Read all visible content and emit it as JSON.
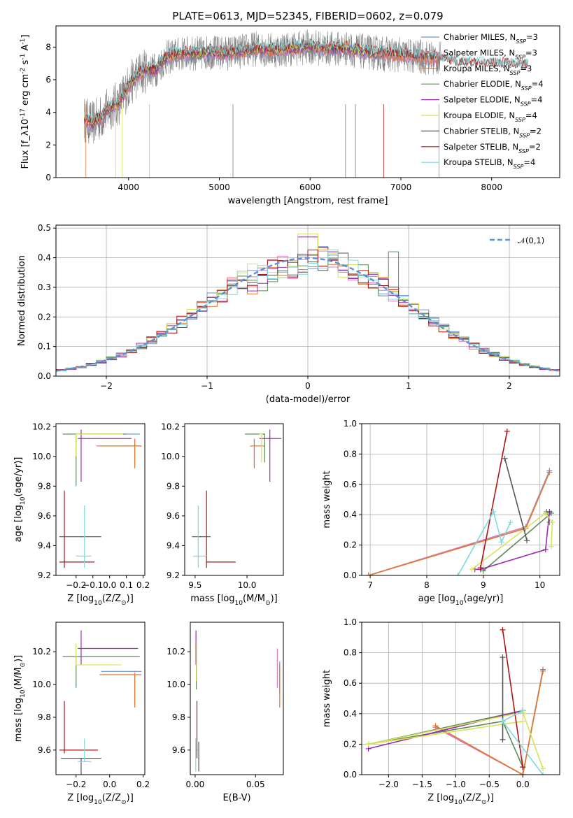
{
  "colors": {
    "Chabrier MILES": "#6f93cf",
    "Salpeter MILES": "#e377c2",
    "Kroupa MILES": "#e07a2a",
    "Chabrier ELODIE": "#5a8a5a",
    "Salpeter ELODIE": "#9b2bb0",
    "Kroupa ELODIE": "#d8e25a",
    "Chabrier STELIB": "#555555",
    "Salpeter STELIB": "#b01515",
    "Kroupa STELIB": "#7fd9dc",
    "data": "#808080",
    "gauss": "#5b8fd6"
  },
  "chart_data": [
    {
      "id": "spectrum",
      "type": "line",
      "title": "PLATE=0613, MJD=52345, FIBERID=0602, z=0.079",
      "xlabel": "wavelength [Angstrom, rest frame]",
      "ylabel": "Flux [f$_\\lambda$10$^{-17}$ erg cm$^{-2}$ s$^{-1}$ A$^{-1}$]",
      "xlim": [
        3200,
        8750
      ],
      "ylim": [
        0,
        9.3
      ],
      "xticks": [
        4000,
        5000,
        6000,
        7000,
        8000
      ],
      "yticks": [
        0,
        2,
        4,
        6,
        8
      ],
      "grid": false,
      "legend_placement": "upper right",
      "legend": [
        "Chabrier MILES, N$_{SSP}$=3",
        "Salpeter MILES, N$_{SSP}$=3",
        "Kroupa MILES, N$_{SSP}$=3",
        "Chabrier ELODIE, N$_{SSP}$=4",
        "Salpeter ELODIE, N$_{SSP}$=4",
        "Kroupa ELODIE, N$_{SSP}$=4",
        "Chabrier STELIB, N$_{SSP}$=2",
        "Salpeter STELIB, N$_{SSP}$=2",
        "Kroupa STELIB, N$_{SSP}$=4"
      ],
      "model_wave": [
        3500,
        3600,
        3700,
        3800,
        3900,
        4000,
        4100,
        4200,
        4300,
        4400,
        4500,
        4600,
        4700,
        4800,
        4900,
        5000,
        5200,
        5400,
        5600,
        5800,
        6000,
        6200,
        6400,
        6600,
        6800,
        7000,
        7200,
        7400,
        7600,
        7800,
        8000,
        8200,
        8400
      ],
      "model_flux": [
        3.6,
        3.3,
        3.7,
        4.3,
        4.6,
        5.6,
        6.3,
        6.6,
        6.6,
        7.3,
        7.5,
        7.6,
        7.6,
        7.6,
        7.7,
        7.6,
        7.7,
        7.9,
        7.8,
        7.9,
        8.0,
        7.9,
        7.9,
        7.7,
        7.6,
        7.5,
        7.4,
        7.3,
        7.0,
        6.9,
        6.9,
        6.9,
        6.8
      ]
    },
    {
      "id": "residuals",
      "type": "bar",
      "xlabel": "(data-model)/error",
      "ylabel": "Normed distribution",
      "xlim": [
        -2.5,
        2.5
      ],
      "ylim": [
        0,
        0.51
      ],
      "xticks": [
        -2,
        -1,
        0,
        1,
        2
      ],
      "yticks": [
        0.0,
        0.1,
        0.2,
        0.3,
        0.4,
        0.5
      ],
      "grid": true,
      "legend_placement": "upper right",
      "legend": [
        "$\\mathcal{N}(0,1)$"
      ],
      "bin_width": 0.1
    },
    {
      "id": "age-Z",
      "type": "scatter",
      "xlabel": "Z [log$_{10}$($Z/Z_\\odot$)]",
      "ylabel": "age  [log$_{10}$($age/yr$)]",
      "xlim": [
        -0.32,
        0.21
      ],
      "ylim": [
        9.2,
        10.22
      ],
      "xticks": [
        -0.2,
        -0.1,
        0.0,
        0.1,
        0.2
      ],
      "yticks": [
        9.2,
        9.4,
        9.6,
        9.8,
        10.0,
        10.2
      ],
      "grid": false,
      "points": [
        {
          "m": "Chabrier MILES",
          "x": -0.2,
          "y": 10.15,
          "xe": [
            0.0,
            0.38
          ],
          "ye": [
            0.0,
            0.0
          ]
        },
        {
          "m": "Salpeter MILES",
          "x": 0.15,
          "y": 10.07,
          "xe": [
            0.23,
            0.04
          ],
          "ye": [
            0.14,
            0.05
          ]
        },
        {
          "m": "Kroupa MILES",
          "x": 0.15,
          "y": 10.07,
          "xe": [
            0.21,
            0.04
          ],
          "ye": [
            0.15,
            0.04
          ]
        },
        {
          "m": "Chabrier ELODIE",
          "x": -0.2,
          "y": 10.15,
          "xe": [
            0.08,
            0.3
          ],
          "ye": [
            0.35,
            0.0
          ]
        },
        {
          "m": "Salpeter ELODIE",
          "x": -0.17,
          "y": 10.12,
          "xe": [
            0.02,
            0.3
          ],
          "ye": [
            0.29,
            0.06
          ]
        },
        {
          "m": "Kroupa ELODIE",
          "x": -0.2,
          "y": 10.15,
          "xe": [
            0.0,
            0.28
          ],
          "ye": [
            0.15,
            0.0
          ]
        },
        {
          "m": "Chabrier STELIB",
          "x": -0.17,
          "y": 9.46,
          "xe": [
            0.13,
            0.12
          ],
          "ye": [
            0.0,
            0.0
          ]
        },
        {
          "m": "Salpeter STELIB",
          "x": -0.27,
          "y": 9.29,
          "xe": [
            0.03,
            0.18
          ],
          "ye": [
            0.04,
            0.48
          ]
        },
        {
          "m": "Kroupa STELIB",
          "x": -0.15,
          "y": 9.33,
          "xe": [
            0.05,
            0.04
          ],
          "ye": [
            0.08,
            0.34
          ]
        }
      ]
    },
    {
      "id": "age-mass",
      "type": "scatter",
      "xlabel": "mass [log$_{10}$($M/M_\\odot$)]",
      "ylabel": "",
      "xlim": [
        9.4,
        10.35
      ],
      "ylim": [
        9.2,
        10.22
      ],
      "xticks": [
        9.5,
        10.0
      ],
      "yticks": [
        9.2,
        9.4,
        9.6,
        9.8,
        10.0,
        10.2
      ],
      "grid": false,
      "points": [
        {
          "m": "Chabrier MILES",
          "x": 10.08,
          "y": 10.15,
          "xe": [
            0.0,
            0.0
          ],
          "ye": [
            0.0,
            0.0
          ]
        },
        {
          "m": "Salpeter MILES",
          "x": 10.07,
          "y": 10.07,
          "xe": [
            0.0,
            0.0
          ],
          "ye": [
            0.14,
            0.05
          ]
        },
        {
          "m": "Kroupa MILES",
          "x": 10.07,
          "y": 10.07,
          "xe": [
            0.04,
            0.1
          ],
          "ye": [
            0.15,
            0.04
          ]
        },
        {
          "m": "Chabrier ELODIE",
          "x": 10.17,
          "y": 10.15,
          "xe": [
            0.19,
            0.0
          ],
          "ye": [
            0.19,
            0.0
          ]
        },
        {
          "m": "Salpeter ELODIE",
          "x": 10.22,
          "y": 10.12,
          "xe": [
            0.1,
            0.11
          ],
          "ye": [
            0.29,
            0.06
          ]
        },
        {
          "m": "Kroupa ELODIE",
          "x": 10.14,
          "y": 10.15,
          "xe": [
            0.02,
            0.01
          ],
          "ye": [
            0.19,
            0.0
          ]
        },
        {
          "m": "Chabrier STELIB",
          "x": 9.55,
          "y": 9.46,
          "xe": [
            0.08,
            0.1
          ],
          "ye": [
            0.0,
            0.0
          ]
        },
        {
          "m": "Salpeter STELIB",
          "x": 9.61,
          "y": 9.29,
          "xe": [
            0.0,
            0.28
          ],
          "ye": [
            0.04,
            0.48
          ]
        },
        {
          "m": "Kroupa STELIB",
          "x": 9.53,
          "y": 9.33,
          "xe": [
            0.05,
            0.08
          ],
          "ye": [
            0.08,
            0.34
          ]
        }
      ]
    },
    {
      "id": "mass-Z",
      "type": "scatter",
      "xlabel": "Z [log$_{10}$($Z/Z_\\odot$)]",
      "ylabel": "mass [log$_{10}$($M/M_\\odot$)]",
      "xlim": [
        -0.32,
        0.21
      ],
      "ylim": [
        9.45,
        10.38
      ],
      "xticks": [
        -0.2,
        0.0,
        0.2
      ],
      "yticks": [
        9.6,
        9.8,
        10.0,
        10.2
      ],
      "grid": false,
      "points": [
        {
          "m": "Chabrier MILES",
          "x": 0.15,
          "y": 10.08,
          "xe": [
            0.2,
            0.04
          ],
          "ye": [
            0.0,
            0.0
          ]
        },
        {
          "m": "Salpeter MILES",
          "x": 0.15,
          "y": 10.07,
          "xe": [
            0.0,
            0.0
          ],
          "ye": [
            0.2,
            0.0
          ]
        },
        {
          "m": "Kroupa MILES",
          "x": 0.15,
          "y": 10.06,
          "xe": [
            0.21,
            0.04
          ],
          "ye": [
            0.2,
            0.0
          ]
        },
        {
          "m": "Chabrier ELODIE",
          "x": -0.2,
          "y": 10.17,
          "xe": [
            0.08,
            0.38
          ],
          "ye": [
            0.19,
            0.0
          ]
        },
        {
          "m": "Salpeter ELODIE",
          "x": -0.17,
          "y": 10.22,
          "xe": [
            0.02,
            0.34
          ],
          "ye": [
            0.1,
            0.11
          ]
        },
        {
          "m": "Kroupa ELODIE",
          "x": -0.2,
          "y": 10.12,
          "xe": [
            0.0,
            0.27
          ],
          "ye": [
            0.0,
            0.13
          ]
        },
        {
          "m": "Chabrier STELIB",
          "x": -0.17,
          "y": 9.55,
          "xe": [
            0.12,
            0.12
          ],
          "ye": [
            0.1,
            0.0
          ]
        },
        {
          "m": "Salpeter STELIB",
          "x": -0.27,
          "y": 9.6,
          "xe": [
            0.03,
            0.2
          ],
          "ye": [
            0.02,
            0.3
          ]
        },
        {
          "m": "Kroupa STELIB",
          "x": -0.15,
          "y": 9.53,
          "xe": [
            0.04,
            0.04
          ],
          "ye": [
            0.0,
            0.14
          ]
        }
      ]
    },
    {
      "id": "mass-EBV",
      "type": "scatter",
      "xlabel": "E(B-V)",
      "ylabel": "",
      "xlim": [
        -0.004,
        0.073
      ],
      "ylim": [
        9.45,
        10.38
      ],
      "xticks": [
        0.0,
        0.05
      ],
      "yticks": [
        9.6,
        9.8,
        10.0,
        10.2
      ],
      "grid": false,
      "points": [
        {
          "m": "Chabrier MILES",
          "x": 0.07,
          "y": 10.08,
          "xe": [
            0,
            0
          ],
          "ye": [
            0.14,
            0.06
          ]
        },
        {
          "m": "Salpeter MILES",
          "x": 0.068,
          "y": 10.07,
          "xe": [
            0,
            0
          ],
          "ye": [
            0.09,
            0.15
          ]
        },
        {
          "m": "Kroupa MILES",
          "x": 0.07,
          "y": 10.06,
          "xe": [
            0,
            0
          ],
          "ye": [
            0.2,
            0.06
          ]
        },
        {
          "m": "Chabrier ELODIE",
          "x": 0.001,
          "y": 10.17,
          "xe": [
            0,
            0
          ],
          "ye": [
            0.2,
            0.06
          ]
        },
        {
          "m": "Salpeter ELODIE",
          "x": 0.0007,
          "y": 10.22,
          "xe": [
            0,
            0
          ],
          "ye": [
            0.1,
            0.11
          ]
        },
        {
          "m": "Kroupa ELODIE",
          "x": 0.0012,
          "y": 10.12,
          "xe": [
            0,
            0
          ],
          "ye": [
            0.1,
            0.14
          ]
        },
        {
          "m": "Chabrier STELIB",
          "x": 0.003,
          "y": 9.55,
          "xe": [
            0,
            0
          ],
          "ye": [
            0.08,
            0.1
          ]
        },
        {
          "m": "Salpeter STELIB",
          "x": 0.0015,
          "y": 9.6,
          "xe": [
            0,
            0
          ],
          "ye": [
            0.05,
            0.3
          ]
        },
        {
          "m": "Kroupa STELIB",
          "x": 0.0005,
          "y": 9.53,
          "xe": [
            0,
            0
          ],
          "ye": [
            0.06,
            0.14
          ]
        }
      ]
    },
    {
      "id": "weight-age",
      "type": "line",
      "xlabel": "age  [log$_{10}$($age/yr$)]",
      "ylabel": "mass weight",
      "xlim": [
        6.85,
        10.35
      ],
      "ylim": [
        0,
        1.0
      ],
      "xticks": [
        7,
        8,
        9,
        10
      ],
      "yticks": [
        0.0,
        0.2,
        0.4,
        0.6,
        0.8,
        1.0
      ],
      "grid": true,
      "series": [
        {
          "m": "Chabrier MILES",
          "x": [
            10.17,
            9.75,
            6.97
          ],
          "y": [
            0.69,
            0.32,
            0.0
          ]
        },
        {
          "m": "Salpeter MILES",
          "x": [
            10.17,
            9.75,
            6.97
          ],
          "y": [
            0.68,
            0.32,
            0.0
          ]
        },
        {
          "m": "Kroupa MILES",
          "x": [
            10.17,
            9.75,
            6.97
          ],
          "y": [
            0.68,
            0.31,
            0.0
          ]
        },
        {
          "m": "Chabrier ELODIE",
          "x": [
            10.17,
            10.12,
            10.2,
            9.0
          ],
          "y": [
            0.35,
            0.42,
            0.41,
            0.03
          ]
        },
        {
          "m": "Salpeter ELODIE",
          "x": [
            10.17,
            10.1,
            8.95,
            8.85
          ],
          "y": [
            0.42,
            0.17,
            0.04,
            0.04
          ]
        },
        {
          "m": "Kroupa ELODIE",
          "x": [
            10.2,
            10.22,
            10.1,
            8.8
          ],
          "y": [
            0.19,
            0.35,
            0.41,
            0.04
          ]
        },
        {
          "m": "Chabrier STELIB",
          "x": [
            9.38,
            9.77
          ],
          "y": [
            0.77,
            0.23
          ]
        },
        {
          "m": "Salpeter STELIB",
          "x": [
            9.42,
            8.95
          ],
          "y": [
            0.95,
            0.05
          ]
        },
        {
          "m": "Kroupa STELIB",
          "x": [
            8.55,
            9.18,
            9.32,
            9.48
          ],
          "y": [
            0.0,
            0.42,
            0.22,
            0.35
          ]
        }
      ]
    },
    {
      "id": "weight-Z",
      "type": "line",
      "xlabel": "Z [log$_{10}$($Z/Z_\\odot$)]",
      "ylabel": "mass weight",
      "xlim": [
        -2.4,
        0.55
      ],
      "ylim": [
        0,
        1.0
      ],
      "xticks": [
        -2.0,
        -1.5,
        -1.0,
        -0.5,
        0.0
      ],
      "yticks": [
        0.0,
        0.2,
        0.4,
        0.6,
        0.8,
        1.0
      ],
      "grid": true,
      "series": [
        {
          "m": "Chabrier MILES",
          "x": [
            0.3,
            0.0,
            -1.3
          ],
          "y": [
            0.69,
            0.0,
            0.31
          ]
        },
        {
          "m": "Salpeter MILES",
          "x": [
            0.3,
            0.0,
            -1.3
          ],
          "y": [
            0.68,
            0.0,
            0.31
          ]
        },
        {
          "m": "Kroupa MILES",
          "x": [
            0.3,
            0.0,
            -1.3
          ],
          "y": [
            0.68,
            0.0,
            0.32
          ]
        },
        {
          "m": "Chabrier ELODIE",
          "x": [
            0.0,
            -0.3,
            -2.3,
            0.0
          ],
          "y": [
            0.05,
            0.35,
            0.2,
            0.42
          ]
        },
        {
          "m": "Salpeter ELODIE",
          "x": [
            0.0,
            -2.3,
            0.0
          ],
          "y": [
            0.42,
            0.17,
            0.42
          ]
        },
        {
          "m": "Kroupa ELODIE",
          "x": [
            0.3,
            0.0,
            -2.3,
            0.0
          ],
          "y": [
            0.04,
            0.41,
            0.2,
            0.35
          ]
        },
        {
          "m": "Chabrier STELIB",
          "x": [
            -0.3,
            -0.3
          ],
          "y": [
            0.77,
            0.23
          ]
        },
        {
          "m": "Salpeter STELIB",
          "x": [
            -0.3,
            0.0
          ],
          "y": [
            0.95,
            0.05
          ]
        },
        {
          "m": "Kroupa STELIB",
          "x": [
            0.0,
            -0.3,
            0.3
          ],
          "y": [
            0.42,
            0.35,
            0.0
          ]
        }
      ]
    }
  ]
}
